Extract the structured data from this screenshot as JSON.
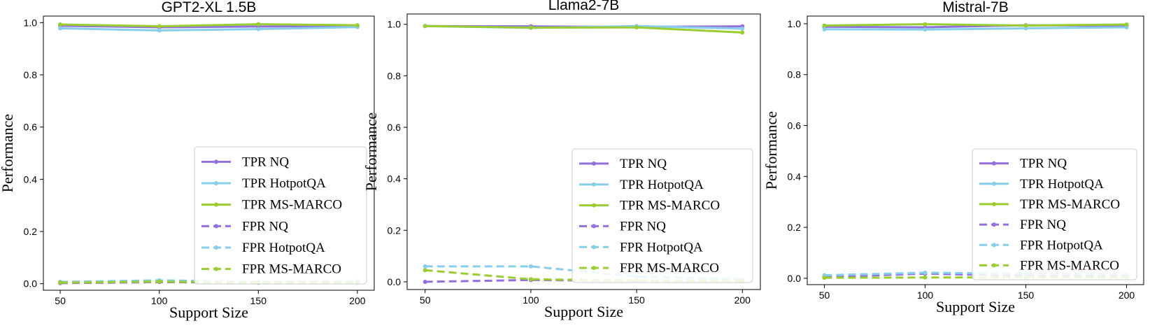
{
  "chart_data": [
    {
      "type": "line",
      "title": "GPT2-XL 1.5B",
      "xlabel": "Support Size",
      "ylabel": "Performance",
      "x": [
        50,
        100,
        150,
        200
      ],
      "xticks": [
        "50",
        "100",
        "150",
        "200"
      ],
      "yticks": [
        "0.0",
        "0.2",
        "0.4",
        "0.6",
        "0.8",
        "1.0"
      ],
      "ylim": [
        -0.025,
        1.025
      ],
      "legend_position": "lower-right",
      "series": [
        {
          "name": "TPR NQ",
          "values": [
            0.988,
            0.982,
            0.985,
            0.988
          ],
          "color": "#9370DB",
          "dash": "solid"
        },
        {
          "name": "TPR HotpotQA",
          "values": [
            0.978,
            0.97,
            0.975,
            0.983
          ],
          "color": "#87CEEB",
          "dash": "solid"
        },
        {
          "name": "TPR MS-MARCO",
          "values": [
            0.993,
            0.986,
            0.994,
            0.99
          ],
          "color": "#9ACD32",
          "dash": "solid"
        },
        {
          "name": "FPR NQ",
          "values": [
            0.002,
            0.006,
            0.004,
            0.005
          ],
          "color": "#9370DB",
          "dash": "dashed"
        },
        {
          "name": "FPR HotpotQA",
          "values": [
            0.007,
            0.013,
            0.008,
            0.01
          ],
          "color": "#87CEEB",
          "dash": "dashed"
        },
        {
          "name": "FPR MS-MARCO",
          "values": [
            0.004,
            0.008,
            0.005,
            0.006
          ],
          "color": "#9ACD32",
          "dash": "dashed"
        }
      ]
    },
    {
      "type": "line",
      "title": "Llama2-7B",
      "xlabel": "Support Size",
      "ylabel": "Performance",
      "x": [
        50,
        100,
        150,
        200
      ],
      "xticks": [
        "50",
        "100",
        "150",
        "200"
      ],
      "yticks": [
        "0.0",
        "0.2",
        "0.4",
        "0.6",
        "0.8",
        "1.0"
      ],
      "ylim": [
        -0.03,
        1.04
      ],
      "legend_position": "lower-right",
      "series": [
        {
          "name": "TPR NQ",
          "values": [
            0.993,
            0.992,
            0.99,
            0.992
          ],
          "color": "#9370DB",
          "dash": "solid"
        },
        {
          "name": "TPR HotpotQA",
          "values": [
            0.993,
            0.986,
            0.993,
            0.983
          ],
          "color": "#87CEEB",
          "dash": "solid"
        },
        {
          "name": "TPR MS-MARCO",
          "values": [
            0.993,
            0.987,
            0.988,
            0.968
          ],
          "color": "#9ACD32",
          "dash": "solid"
        },
        {
          "name": "FPR NQ",
          "values": [
            0.0,
            0.007,
            0.004,
            0.004
          ],
          "color": "#9370DB",
          "dash": "dashed"
        },
        {
          "name": "FPR HotpotQA",
          "values": [
            0.06,
            0.06,
            0.02,
            0.01
          ],
          "color": "#87CEEB",
          "dash": "dashed"
        },
        {
          "name": "FPR MS-MARCO",
          "values": [
            0.045,
            0.01,
            0.005,
            0.003
          ],
          "color": "#9ACD32",
          "dash": "dashed"
        }
      ]
    },
    {
      "type": "line",
      "title": "Mistral-7B",
      "xlabel": "Support Size",
      "ylabel": "Performance",
      "x": [
        50,
        100,
        150,
        200
      ],
      "xticks": [
        "50",
        "100",
        "150",
        "200"
      ],
      "yticks": [
        "0.0",
        "0.2",
        "0.4",
        "0.6",
        "0.8",
        "1.0"
      ],
      "ylim": [
        -0.025,
        1.03
      ],
      "legend_position": "lower-right",
      "series": [
        {
          "name": "TPR NQ",
          "values": [
            0.988,
            0.986,
            0.994,
            0.992
          ],
          "color": "#9370DB",
          "dash": "solid"
        },
        {
          "name": "TPR HotpotQA",
          "values": [
            0.978,
            0.977,
            0.982,
            0.986
          ],
          "color": "#87CEEB",
          "dash": "solid"
        },
        {
          "name": "TPR MS-MARCO",
          "values": [
            0.993,
            0.998,
            0.993,
            0.997
          ],
          "color": "#9ACD32",
          "dash": "solid"
        },
        {
          "name": "FPR NQ",
          "values": [
            0.005,
            0.018,
            0.01,
            0.008
          ],
          "color": "#9370DB",
          "dash": "dashed"
        },
        {
          "name": "FPR HotpotQA",
          "values": [
            0.012,
            0.022,
            0.018,
            0.015
          ],
          "color": "#87CEEB",
          "dash": "dashed"
        },
        {
          "name": "FPR MS-MARCO",
          "values": [
            0.002,
            0.003,
            0.004,
            0.003
          ],
          "color": "#9ACD32",
          "dash": "dashed"
        }
      ]
    }
  ]
}
